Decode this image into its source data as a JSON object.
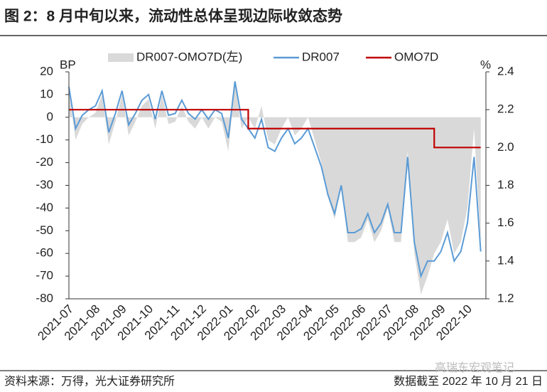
{
  "chart_data": {
    "type": "combo",
    "title": "图 2：8 月中旬以来，流动性总体呈现边际收敛态势",
    "ylabel": "BP",
    "y2label": "%",
    "source": "资料来源：万得，光大证券研究所",
    "note": "数据截至 2022 年 10 月 21 日",
    "watermark": "高瑞东宏观笔记",
    "categories": [
      "2021-07",
      null,
      null,
      null,
      "2021-08",
      null,
      null,
      null,
      "2021-09",
      null,
      null,
      null,
      "2021-10",
      null,
      null,
      null,
      "2021-11",
      null,
      null,
      null,
      "2021-12",
      null,
      null,
      null,
      "2022-01",
      null,
      null,
      null,
      "2022-02",
      null,
      null,
      null,
      "2022-03",
      null,
      null,
      null,
      "2022-04",
      null,
      null,
      null,
      "2022-05",
      null,
      null,
      null,
      "2022-06",
      null,
      null,
      null,
      "2022-07",
      null,
      null,
      null,
      "2022-08",
      null,
      null,
      null,
      "2022-09",
      null,
      null,
      null,
      "2022-10",
      null,
      null
    ],
    "series": [
      {
        "name": "DR007-OMO7D(左)",
        "kind": "area",
        "axis": "y",
        "color": "#d9d9d9",
        "values": [
          12,
          -10,
          -3,
          0,
          2,
          10,
          -12,
          -2,
          10,
          -8,
          -2,
          5,
          8,
          -5,
          10,
          -3,
          -2,
          5,
          -2,
          -5,
          0,
          -5,
          0,
          -2,
          -15,
          15,
          -5,
          0,
          -5,
          5,
          -10,
          -12,
          -5,
          0,
          -8,
          -5,
          0,
          -10,
          -20,
          -35,
          -45,
          -30,
          -55,
          -55,
          -53,
          -45,
          -55,
          -50,
          -40,
          -55,
          -55,
          -15,
          -60,
          -78,
          -70,
          -60,
          -55,
          -45,
          -60,
          -55,
          -40,
          -5,
          -55
        ]
      },
      {
        "name": "DR007",
        "kind": "line",
        "axis": "y2",
        "color": "#5b9bd5",
        "values": [
          2.32,
          2.1,
          2.17,
          2.2,
          2.22,
          2.3,
          2.08,
          2.18,
          2.3,
          2.12,
          2.18,
          2.25,
          2.28,
          2.15,
          2.3,
          2.17,
          2.18,
          2.25,
          2.18,
          2.15,
          2.2,
          2.15,
          2.2,
          2.18,
          2.05,
          2.35,
          2.15,
          2.1,
          2.05,
          2.15,
          2.0,
          1.98,
          2.05,
          2.1,
          2.02,
          2.05,
          2.1,
          2.0,
          1.9,
          1.75,
          1.65,
          1.8,
          1.55,
          1.55,
          1.57,
          1.65,
          1.55,
          1.6,
          1.7,
          1.55,
          1.55,
          1.95,
          1.5,
          1.32,
          1.4,
          1.4,
          1.45,
          1.55,
          1.4,
          1.45,
          1.6,
          1.95,
          1.45
        ]
      },
      {
        "name": "OMO7D",
        "kind": "step",
        "axis": "y2",
        "color": "#c00000",
        "values": [
          2.2,
          2.2,
          2.2,
          2.2,
          2.2,
          2.2,
          2.2,
          2.2,
          2.2,
          2.2,
          2.2,
          2.2,
          2.2,
          2.2,
          2.2,
          2.2,
          2.2,
          2.2,
          2.2,
          2.2,
          2.2,
          2.2,
          2.2,
          2.2,
          2.2,
          2.2,
          2.2,
          2.1,
          2.1,
          2.1,
          2.1,
          2.1,
          2.1,
          2.1,
          2.1,
          2.1,
          2.1,
          2.1,
          2.1,
          2.1,
          2.1,
          2.1,
          2.1,
          2.1,
          2.1,
          2.1,
          2.1,
          2.1,
          2.1,
          2.1,
          2.1,
          2.1,
          2.1,
          2.1,
          2.1,
          2.0,
          2.0,
          2.0,
          2.0,
          2.0,
          2.0,
          2.0,
          2.0
        ]
      }
    ],
    "ylim": [
      -80,
      20
    ],
    "yticks": [
      20,
      10,
      0,
      -10,
      -20,
      -30,
      -40,
      -50,
      -60,
      -70,
      -80
    ],
    "y2lim": [
      1.2,
      2.4
    ],
    "y2ticks": [
      2.4,
      2.2,
      {
        "value": 2,
        "label": "2.0"
      },
      1.8,
      1.6,
      1.4,
      1.2
    ]
  }
}
